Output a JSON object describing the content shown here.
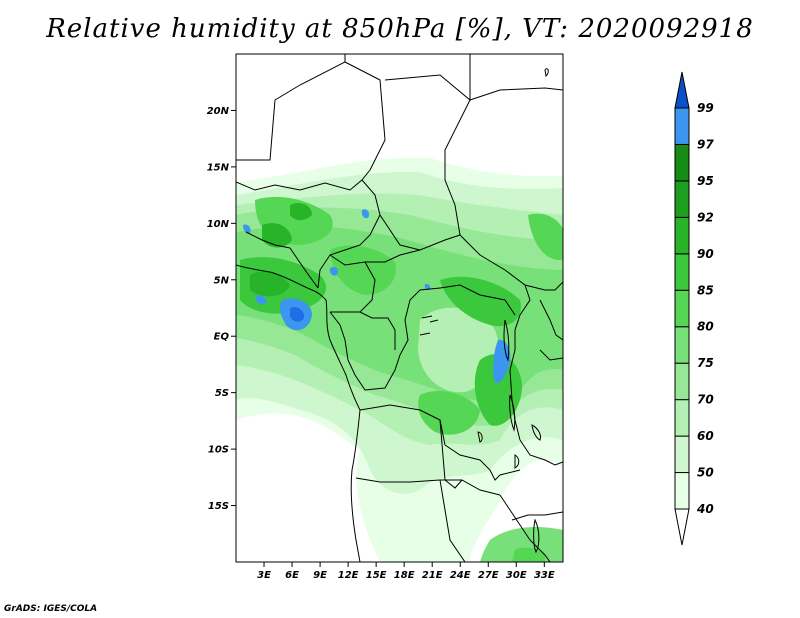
{
  "title": "Relative humidity at 850hPa [%], VT: 2020092918",
  "credit": "GrADS: IGES/COLA",
  "map": {
    "lon_range": [
      0,
      35
    ],
    "lat_range": [
      -20,
      25
    ],
    "lat_ticks": [
      {
        "value": 20,
        "label": "20N"
      },
      {
        "value": 15,
        "label": "15N"
      },
      {
        "value": 10,
        "label": "10N"
      },
      {
        "value": 5,
        "label": "5N"
      },
      {
        "value": 0,
        "label": "EQ"
      },
      {
        "value": -5,
        "label": "5S"
      },
      {
        "value": -10,
        "label": "10S"
      },
      {
        "value": -15,
        "label": "15S"
      }
    ],
    "lon_ticks": [
      {
        "value": 3,
        "label": "3E"
      },
      {
        "value": 6,
        "label": "6E"
      },
      {
        "value": 9,
        "label": "9E"
      },
      {
        "value": 12,
        "label": "12E"
      },
      {
        "value": 15,
        "label": "15E"
      },
      {
        "value": 18,
        "label": "18E"
      },
      {
        "value": 21,
        "label": "21E"
      },
      {
        "value": 24,
        "label": "24E"
      },
      {
        "value": 27,
        "label": "27E"
      },
      {
        "value": 30,
        "label": "30E"
      },
      {
        "value": 33,
        "label": "33E"
      }
    ]
  },
  "colorbar": {
    "labels": [
      "40",
      "50",
      "60",
      "70",
      "75",
      "80",
      "85",
      "90",
      "92",
      "95",
      "97",
      "99"
    ],
    "colors": [
      "#ffffff",
      "#e6ffe6",
      "#cff7cf",
      "#b4f0b4",
      "#96e896",
      "#78e078",
      "#55d655",
      "#3cc83c",
      "#28b428",
      "#1e9e1e",
      "#168c16",
      "#3c96f0",
      "#1e6ee6",
      "#0a50c8"
    ]
  }
}
